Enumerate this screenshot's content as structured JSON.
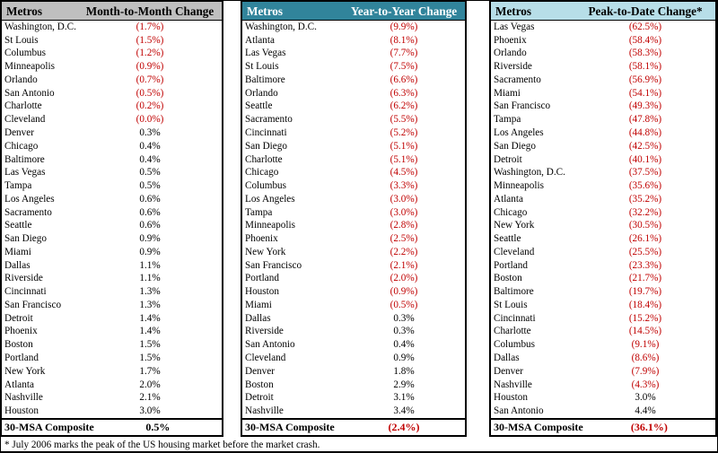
{
  "colors": {
    "negative_value": "#C00000",
    "positive_value": "#000000"
  },
  "tables": [
    {
      "metros_header": "Metros",
      "change_header": "Month-to-Month Change",
      "header_bg": "#BFBFBF",
      "header_fg": "#000000",
      "rows": [
        {
          "metro": "Washington, D.C.",
          "value": "(1.7%)"
        },
        {
          "metro": "St Louis",
          "value": "(1.5%)"
        },
        {
          "metro": "Columbus",
          "value": "(1.2%)"
        },
        {
          "metro": "Minneapolis",
          "value": "(0.9%)"
        },
        {
          "metro": "Orlando",
          "value": "(0.7%)"
        },
        {
          "metro": "San Antonio",
          "value": "(0.5%)"
        },
        {
          "metro": "Charlotte",
          "value": "(0.2%)"
        },
        {
          "metro": "Cleveland",
          "value": "(0.0%)"
        },
        {
          "metro": "Denver",
          "value": "0.3%"
        },
        {
          "metro": "Chicago",
          "value": "0.4%"
        },
        {
          "metro": "Baltimore",
          "value": "0.4%"
        },
        {
          "metro": "Las Vegas",
          "value": "0.5%"
        },
        {
          "metro": "Tampa",
          "value": "0.5%"
        },
        {
          "metro": "Los Angeles",
          "value": "0.6%"
        },
        {
          "metro": "Sacramento",
          "value": "0.6%"
        },
        {
          "metro": "Seattle",
          "value": "0.6%"
        },
        {
          "metro": "San Diego",
          "value": "0.9%"
        },
        {
          "metro": "Miami",
          "value": "0.9%"
        },
        {
          "metro": "Dallas",
          "value": "1.1%"
        },
        {
          "metro": "Riverside",
          "value": "1.1%"
        },
        {
          "metro": "Cincinnati",
          "value": "1.3%"
        },
        {
          "metro": "San Francisco",
          "value": "1.3%"
        },
        {
          "metro": "Detroit",
          "value": "1.4%"
        },
        {
          "metro": "Phoenix",
          "value": "1.4%"
        },
        {
          "metro": "Boston",
          "value": "1.5%"
        },
        {
          "metro": "Portland",
          "value": "1.5%"
        },
        {
          "metro": "New York",
          "value": "1.7%"
        },
        {
          "metro": "Atlanta",
          "value": "2.0%"
        },
        {
          "metro": "Nashville",
          "value": "2.1%"
        },
        {
          "metro": "Houston",
          "value": "3.0%"
        }
      ],
      "composite": {
        "metro": "30-MSA Composite",
        "value": "0.5%"
      }
    },
    {
      "metros_header": "Metros",
      "change_header": "Year-to-Year Change",
      "header_bg": "#31849B",
      "header_fg": "#FFFFFF",
      "rows": [
        {
          "metro": "Washington, D.C.",
          "value": "(9.9%)"
        },
        {
          "metro": "Atlanta",
          "value": "(8.1%)"
        },
        {
          "metro": "Las Vegas",
          "value": "(7.7%)"
        },
        {
          "metro": "St Louis",
          "value": "(7.5%)"
        },
        {
          "metro": "Baltimore",
          "value": "(6.6%)"
        },
        {
          "metro": "Orlando",
          "value": "(6.3%)"
        },
        {
          "metro": "Seattle",
          "value": "(6.2%)"
        },
        {
          "metro": "Sacramento",
          "value": "(5.5%)"
        },
        {
          "metro": "Cincinnati",
          "value": "(5.2%)"
        },
        {
          "metro": "San Diego",
          "value": "(5.1%)"
        },
        {
          "metro": "Charlotte",
          "value": "(5.1%)"
        },
        {
          "metro": "Chicago",
          "value": "(4.5%)"
        },
        {
          "metro": "Columbus",
          "value": "(3.3%)"
        },
        {
          "metro": "Los Angeles",
          "value": "(3.0%)"
        },
        {
          "metro": "Tampa",
          "value": "(3.0%)"
        },
        {
          "metro": "Minneapolis",
          "value": "(2.8%)"
        },
        {
          "metro": "Phoenix",
          "value": "(2.5%)"
        },
        {
          "metro": "New York",
          "value": "(2.2%)"
        },
        {
          "metro": "San Francisco",
          "value": "(2.1%)"
        },
        {
          "metro": "Portland",
          "value": "(2.0%)"
        },
        {
          "metro": "Houston",
          "value": "(0.9%)"
        },
        {
          "metro": "Miami",
          "value": "(0.5%)"
        },
        {
          "metro": "Dallas",
          "value": "0.3%"
        },
        {
          "metro": "Riverside",
          "value": "0.3%"
        },
        {
          "metro": "San Antonio",
          "value": "0.4%"
        },
        {
          "metro": "Cleveland",
          "value": "0.9%"
        },
        {
          "metro": "Denver",
          "value": "1.8%"
        },
        {
          "metro": "Boston",
          "value": "2.9%"
        },
        {
          "metro": "Detroit",
          "value": "3.1%"
        },
        {
          "metro": "Nashville",
          "value": "3.4%"
        }
      ],
      "composite": {
        "metro": "30-MSA Composite",
        "value": "(2.4%)"
      }
    },
    {
      "metros_header": "Metros",
      "change_header": "Peak-to-Date Change*",
      "header_bg": "#B7DEE8",
      "header_fg": "#000000",
      "rows": [
        {
          "metro": "Las Vegas",
          "value": "(62.5%)"
        },
        {
          "metro": "Phoenix",
          "value": "(58.4%)"
        },
        {
          "metro": "Orlando",
          "value": "(58.3%)"
        },
        {
          "metro": "Riverside",
          "value": "(58.1%)"
        },
        {
          "metro": "Sacramento",
          "value": "(56.9%)"
        },
        {
          "metro": "Miami",
          "value": "(54.1%)"
        },
        {
          "metro": "San Francisco",
          "value": "(49.3%)"
        },
        {
          "metro": "Tampa",
          "value": "(47.8%)"
        },
        {
          "metro": "Los Angeles",
          "value": "(44.8%)"
        },
        {
          "metro": "San Diego",
          "value": "(42.5%)"
        },
        {
          "metro": "Detroit",
          "value": "(40.1%)"
        },
        {
          "metro": "Washington, D.C.",
          "value": "(37.5%)"
        },
        {
          "metro": "Minneapolis",
          "value": "(35.6%)"
        },
        {
          "metro": "Atlanta",
          "value": "(35.2%)"
        },
        {
          "metro": "Chicago",
          "value": "(32.2%)"
        },
        {
          "metro": "New York",
          "value": "(30.5%)"
        },
        {
          "metro": "Seattle",
          "value": "(26.1%)"
        },
        {
          "metro": "Cleveland",
          "value": "(25.5%)"
        },
        {
          "metro": "Portland",
          "value": "(23.3%)"
        },
        {
          "metro": "Boston",
          "value": "(21.7%)"
        },
        {
          "metro": "Baltimore",
          "value": "(19.7%)"
        },
        {
          "metro": "St Louis",
          "value": "(18.4%)"
        },
        {
          "metro": "Cincinnati",
          "value": "(15.2%)"
        },
        {
          "metro": "Charlotte",
          "value": "(14.5%)"
        },
        {
          "metro": "Columbus",
          "value": "(9.1%)"
        },
        {
          "metro": "Dallas",
          "value": "(8.6%)"
        },
        {
          "metro": "Denver",
          "value": "(7.9%)"
        },
        {
          "metro": "Nashville",
          "value": "(4.3%)"
        },
        {
          "metro": "Houston",
          "value": "3.0%"
        },
        {
          "metro": "San Antonio",
          "value": "4.4%"
        }
      ],
      "composite": {
        "metro": "30-MSA Composite",
        "value": "(36.1%)"
      }
    }
  ],
  "footnote": "* July 2006 marks the peak of the US housing market before the market crash."
}
